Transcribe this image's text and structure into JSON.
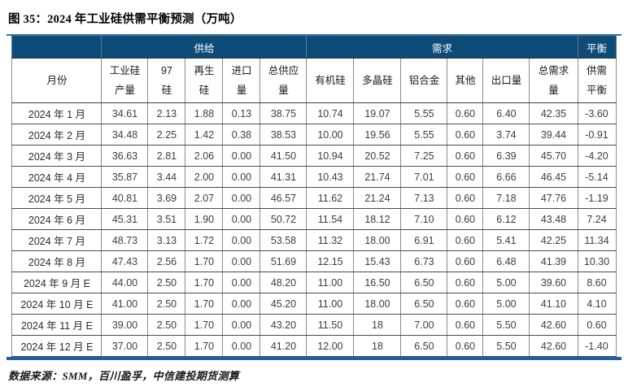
{
  "title": "图 35：2024 年工业硅供需平衡预测（万吨）",
  "source_note": "数据来源：SMM，百川盈孚，中信建投期货测算",
  "colors": {
    "header_bg": "#0d4b78",
    "header_text": "#ffffff",
    "accent_rule": "#2e74b5",
    "accent_rule_bottom": "#1f5fa6"
  },
  "table": {
    "group_headers": [
      {
        "label": "",
        "span": 1
      },
      {
        "label": "供给",
        "span": 5
      },
      {
        "label": "需求",
        "span": 6
      },
      {
        "label": "平衡",
        "span": 1
      }
    ],
    "columns": [
      "月份",
      "工业硅\n产量",
      "97\n硅",
      "再生\n硅",
      "进口\n量",
      "总供应\n量",
      "有机硅",
      "多晶硅",
      "铝合金",
      "其他",
      "出口量",
      "总需求\n量",
      "供需\n平衡"
    ],
    "rows": [
      [
        "2024 年 1 月",
        "34.61",
        "2.13",
        "1.88",
        "0.13",
        "38.75",
        "10.74",
        "19.07",
        "5.55",
        "0.60",
        "6.40",
        "42.35",
        "-3.60"
      ],
      [
        "2024 年 2 月",
        "34.48",
        "2.25",
        "1.42",
        "0.38",
        "38.53",
        "10.00",
        "19.56",
        "5.55",
        "0.60",
        "3.74",
        "39.44",
        "-0.91"
      ],
      [
        "2024 年 3 月",
        "36.63",
        "2.81",
        "2.06",
        "0.00",
        "41.50",
        "10.94",
        "20.52",
        "7.25",
        "0.60",
        "6.39",
        "45.70",
        "-4.20"
      ],
      [
        "2024 年 4 月",
        "35.87",
        "3.44",
        "2.00",
        "0.00",
        "41.31",
        "10.43",
        "21.74",
        "7.01",
        "0.60",
        "6.66",
        "46.45",
        "-5.14"
      ],
      [
        "2024 年 5 月",
        "40.81",
        "3.69",
        "2.07",
        "0.00",
        "46.57",
        "11.62",
        "21.24",
        "7.13",
        "0.60",
        "7.18",
        "47.76",
        "-1.19"
      ],
      [
        "2024 年 6 月",
        "45.31",
        "3.51",
        "1.90",
        "0.00",
        "50.72",
        "11.54",
        "18.12",
        "7.10",
        "0.60",
        "6.12",
        "43.48",
        "7.24"
      ],
      [
        "2024 年 7 月",
        "48.73",
        "3.13",
        "1.72",
        "0.00",
        "53.58",
        "11.32",
        "18.00",
        "6.91",
        "0.60",
        "5.41",
        "42.25",
        "11.34"
      ],
      [
        "2024 年 8 月",
        "47.43",
        "2.56",
        "1.70",
        "0.00",
        "51.69",
        "12.15",
        "15.43",
        "6.73",
        "0.60",
        "6.48",
        "41.39",
        "10.30"
      ],
      [
        "2024 年 9 月 E",
        "44.00",
        "2.50",
        "1.70",
        "0.00",
        "48.20",
        "11.00",
        "16.50",
        "6.50",
        "0.60",
        "5.00",
        "39.60",
        "8.60"
      ],
      [
        "2024 年 10 月 E",
        "41.00",
        "2.50",
        "1.70",
        "0.00",
        "45.20",
        "11.00",
        "18.00",
        "6.50",
        "0.60",
        "5.00",
        "41.10",
        "4.10"
      ],
      [
        "2024 年 11 月 E",
        "39.00",
        "2.50",
        "1.70",
        "0.00",
        "43.20",
        "11.50",
        "18",
        "7.00",
        "0.60",
        "5.50",
        "42.60",
        "0.60"
      ],
      [
        "2024 年 12 月 E",
        "37.00",
        "2.50",
        "1.70",
        "0.00",
        "41.20",
        "12.00",
        "18",
        "6.50",
        "0.60",
        "5.50",
        "42.60",
        "-1.40"
      ]
    ]
  }
}
